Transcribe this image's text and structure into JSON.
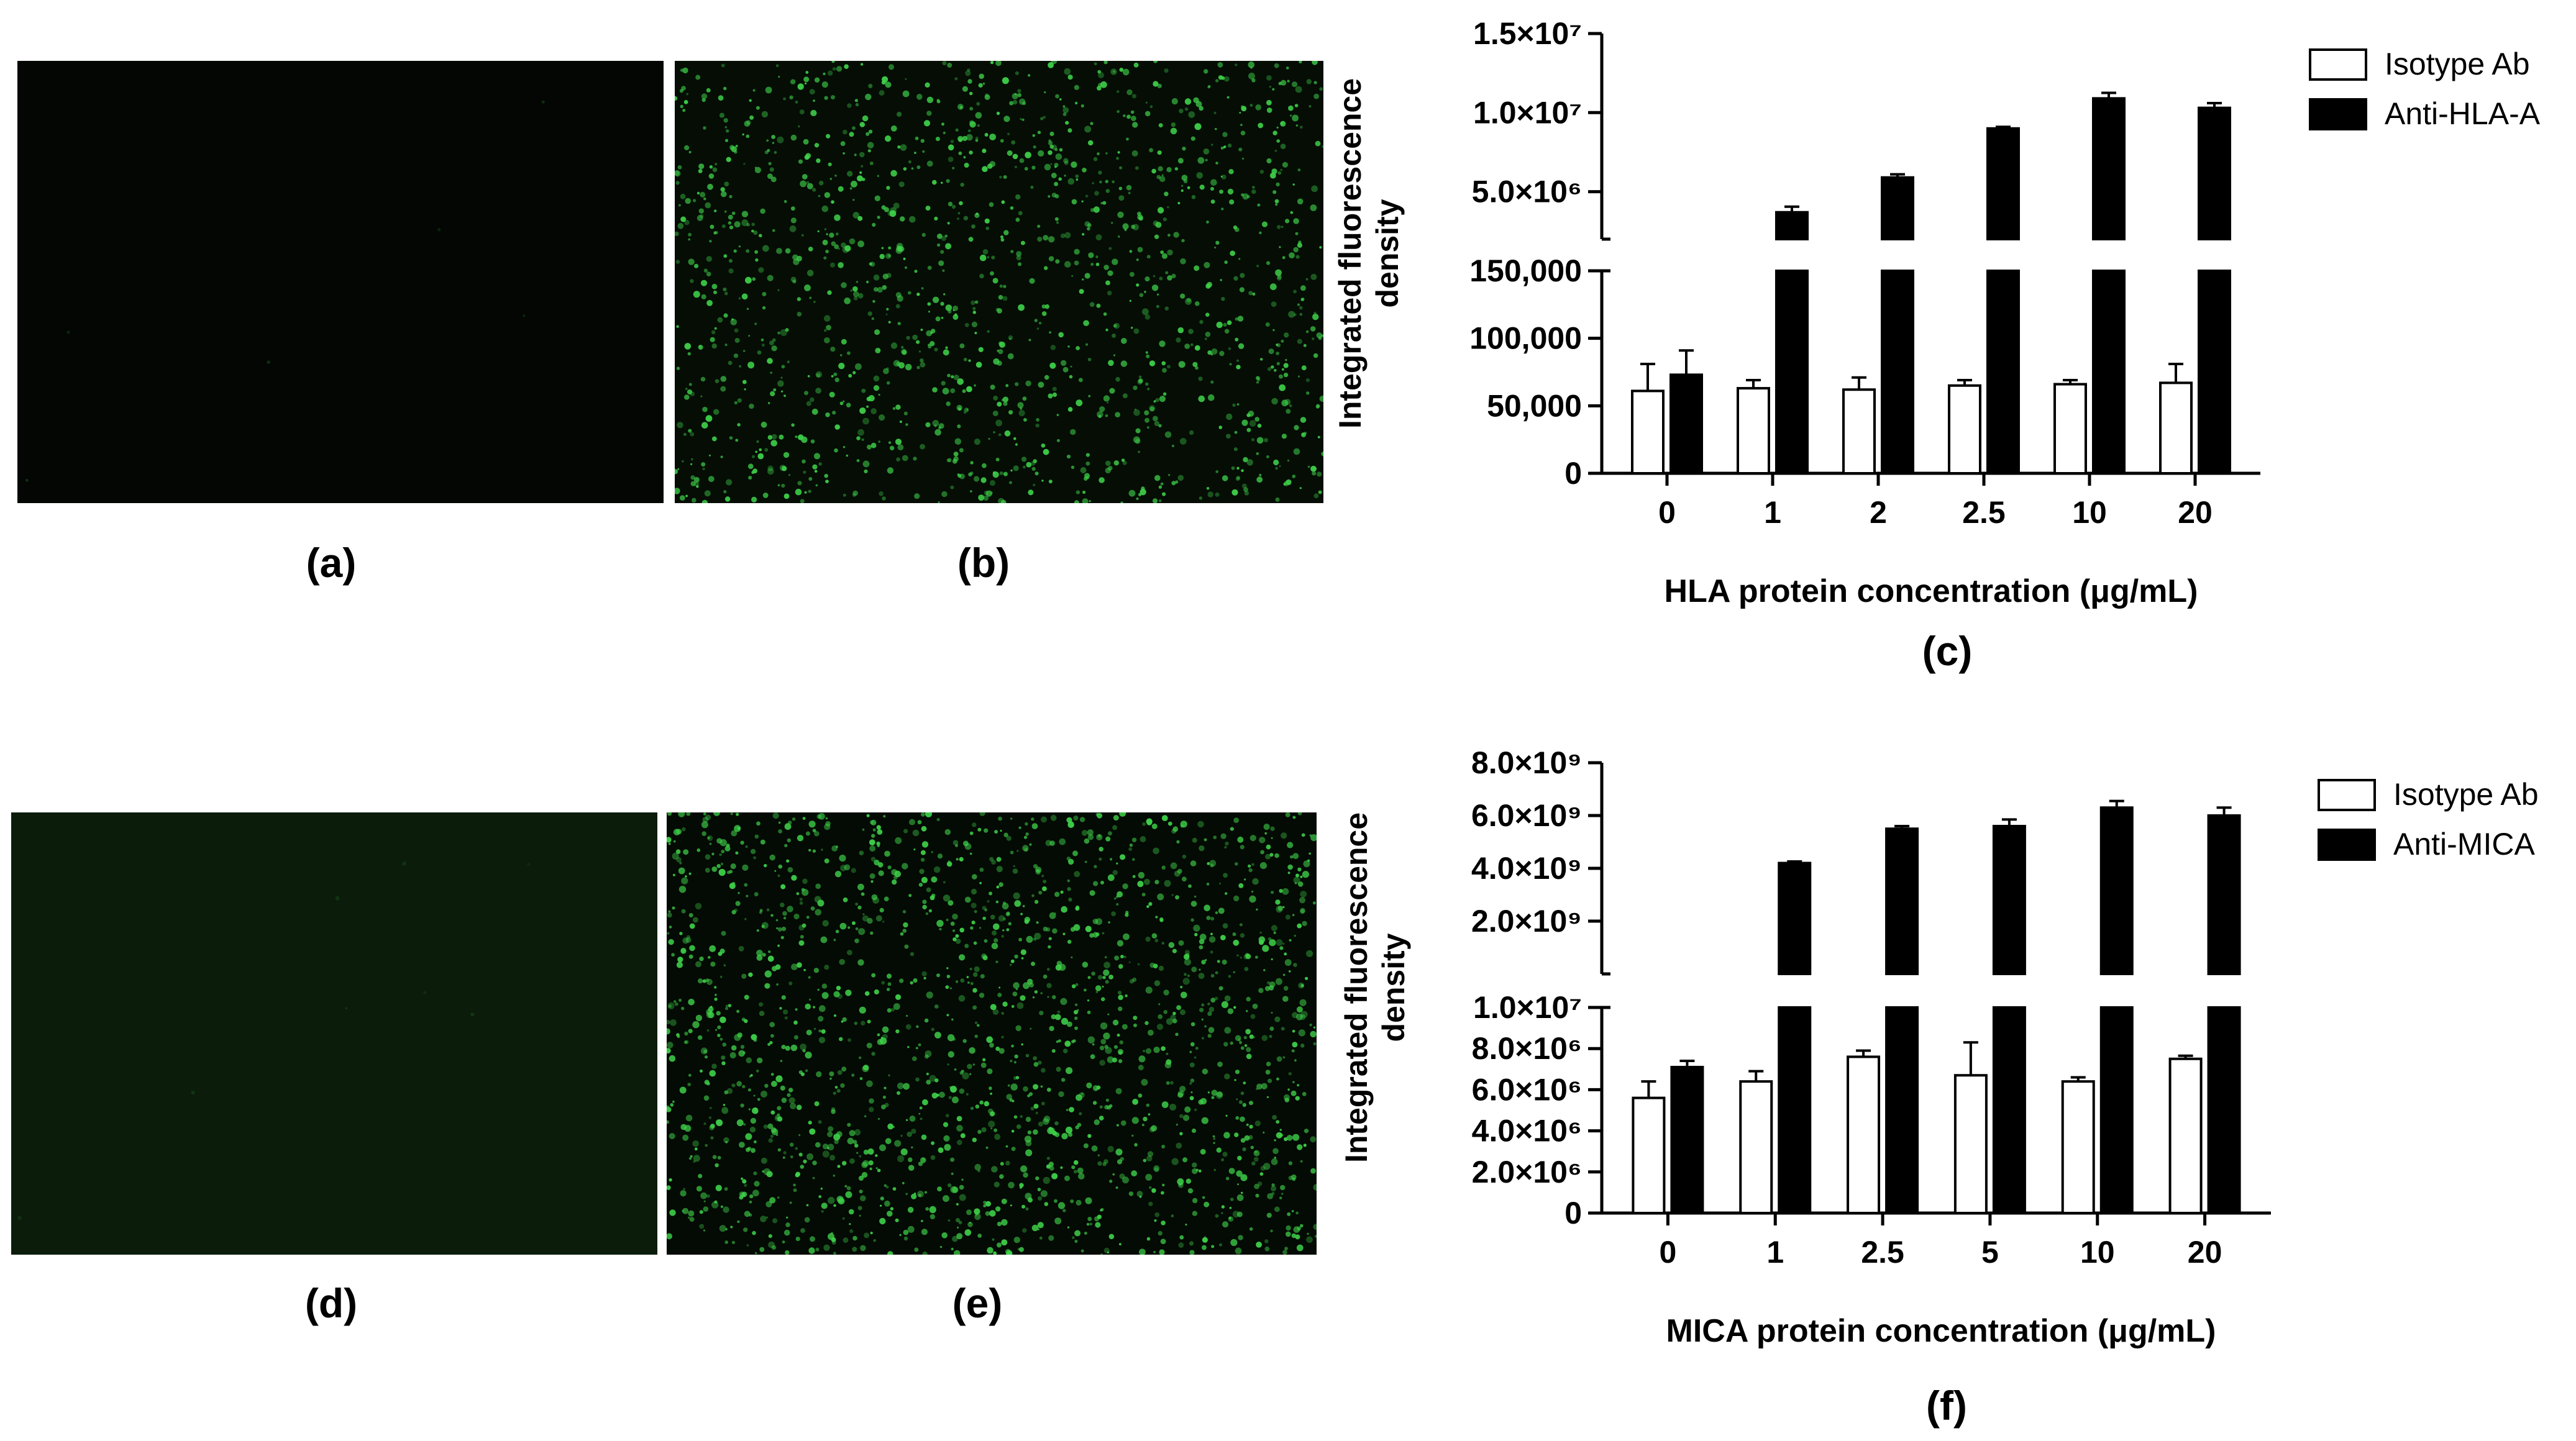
{
  "panel_labels": {
    "a": "(a)",
    "b": "(b)",
    "c": "(c)",
    "d": "(d)",
    "e": "(e)",
    "f": "(f)"
  },
  "colors": {
    "image_bg_dark": "#030603",
    "image_bg_dim": "#0b1c0b",
    "cell_green": "#3fd24a",
    "bar_black": "#000000",
    "bar_white": "#ffffff"
  },
  "chart_data": [
    {
      "type": "bar",
      "panel": "(c)",
      "ylabel": "Integrated fluorescence density",
      "xlabel": "HLA protein concentration  (μg/mL)",
      "categories": [
        "0",
        "1",
        "2",
        "2.5",
        "10",
        "20"
      ],
      "broken_axis": {
        "lower": {
          "ylim": [
            0,
            150000
          ],
          "ticks": [
            0,
            50000,
            100000,
            150000
          ],
          "tick_labels": [
            "0",
            "50,000",
            "100,000",
            "150,000"
          ]
        },
        "upper": {
          "ylim": [
            2000000,
            15000000
          ],
          "ticks": [
            5000000,
            10000000,
            15000000
          ],
          "tick_labels": [
            "5.0×10⁶",
            "1.0×10⁷",
            "1.5×10⁷"
          ]
        }
      },
      "series": [
        {
          "name": "Isotype Ab",
          "fill": "#ffffff",
          "values": [
            61000,
            63000,
            62000,
            65000,
            66000,
            67000
          ],
          "errors": [
            20000,
            6000,
            9000,
            4000,
            3000,
            14000
          ]
        },
        {
          "name": "Anti-HLA-A",
          "fill": "#000000",
          "values": [
            73000,
            3700000,
            5900000,
            9000000,
            10900000,
            10300000
          ],
          "errors": [
            18000,
            350000,
            200000,
            100000,
            350000,
            300000
          ]
        }
      ]
    },
    {
      "type": "bar",
      "panel": "(f)",
      "ylabel": "Integrated fluorescence density",
      "xlabel": "MICA protein concentration  (μg/mL)",
      "categories": [
        "0",
        "1",
        "2.5",
        "5",
        "10",
        "20"
      ],
      "broken_axis": {
        "lower": {
          "ylim": [
            0,
            10000000
          ],
          "ticks": [
            0,
            2000000,
            4000000,
            6000000,
            8000000,
            10000000
          ],
          "tick_labels": [
            "0",
            "2.0×10⁶",
            "4.0×10⁶",
            "6.0×10⁶",
            "8.0×10⁶",
            "1.0×10⁷"
          ]
        },
        "upper": {
          "ylim": [
            0,
            8000000000
          ],
          "ticks": [
            2000000000,
            4000000000,
            6000000000,
            8000000000
          ],
          "tick_labels": [
            "2.0×10⁹",
            "4.0×10⁹",
            "6.0×10⁹",
            "8.0×10⁹"
          ]
        }
      },
      "series": [
        {
          "name": "Isotype Ab",
          "fill": "#ffffff",
          "values": [
            5600000,
            6400000,
            7600000,
            6700000,
            6400000,
            7500000
          ],
          "errors": [
            800000,
            500000,
            300000,
            1600000,
            200000,
            150000
          ]
        },
        {
          "name": "Anti-MICA",
          "fill": "#000000",
          "values": [
            7100000,
            4200000000,
            5500000000,
            5600000000,
            6300000000,
            6000000000
          ],
          "errors": [
            300000,
            60000000,
            100000000,
            250000000,
            250000000,
            300000000
          ]
        }
      ]
    }
  ]
}
